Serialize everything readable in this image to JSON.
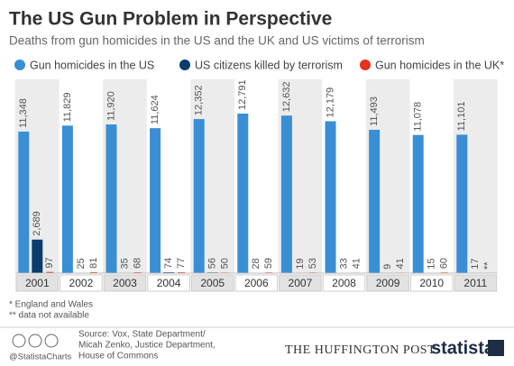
{
  "chart_data": {
    "type": "bar",
    "title": "The US Gun Problem in Perspective",
    "subtitle": "Deaths from gun homicides in the US and the UK and US victims of terrorism",
    "categories": [
      "2001",
      "2002",
      "2003",
      "2004",
      "2005",
      "2006",
      "2007",
      "2008",
      "2009",
      "2010",
      "2011"
    ],
    "series": [
      {
        "name": "Gun homicides in the US",
        "color": "#3a8fd4",
        "values": [
          11348,
          11829,
          11920,
          11624,
          12352,
          12791,
          12632,
          12179,
          11493,
          11078,
          11101
        ],
        "value_labels": [
          "11,348",
          "11,829",
          "11,920",
          "11,624",
          "12,352",
          "12,791",
          "12,632",
          "12,179",
          "11,493",
          "11,078",
          "11,101"
        ]
      },
      {
        "name": "US citizens killed by terrorism",
        "color": "#0b3d6b",
        "values": [
          2689,
          25,
          35,
          74,
          56,
          28,
          19,
          33,
          9,
          15,
          17
        ],
        "value_labels": [
          "2,689",
          "25",
          "35",
          "74",
          "56",
          "28",
          "19",
          "33",
          "9",
          "15",
          "17"
        ]
      },
      {
        "name": "Gun homicides in the UK*",
        "color": "#e3321e",
        "values": [
          97,
          81,
          68,
          77,
          50,
          59,
          53,
          41,
          41,
          60,
          null
        ],
        "value_labels": [
          "97",
          "81",
          "68",
          "77",
          "50",
          "59",
          "53",
          "41",
          "41",
          "60",
          "**"
        ]
      }
    ],
    "notes": [
      "* England and Wales",
      "** data not available"
    ],
    "source": [
      "Source: Vox, State Department/",
      "Micah Zenko, Justice Department,",
      "House of Commons"
    ],
    "handle": "@StatistaCharts",
    "partner": "THE HUFFINGTON POST",
    "brand": "statista"
  }
}
